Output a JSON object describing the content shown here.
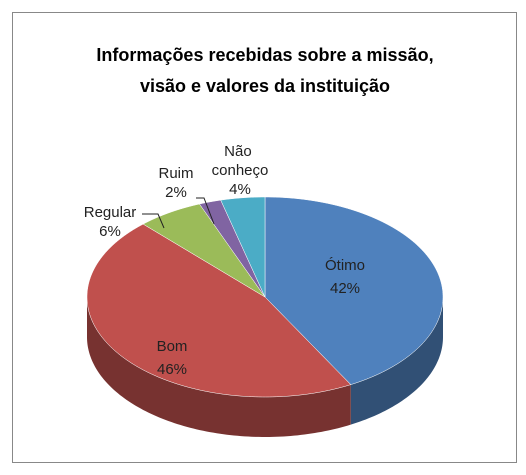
{
  "chart_data": {
    "type": "pie3d",
    "title": [
      "Informações recebidas sobre a missão,",
      "visão e valores da instituição"
    ],
    "categories": [
      "Ótimo",
      "Bom",
      "Regular",
      "Ruim",
      "Não conheço"
    ],
    "values": [
      42,
      46,
      6,
      2,
      4
    ],
    "value_labels": [
      "42%",
      "46%",
      "6%",
      "2%",
      "4%"
    ],
    "colors": [
      "#4f81bd",
      "#c0504d",
      "#9bbb59",
      "#8064a2",
      "#4bacc6"
    ]
  }
}
